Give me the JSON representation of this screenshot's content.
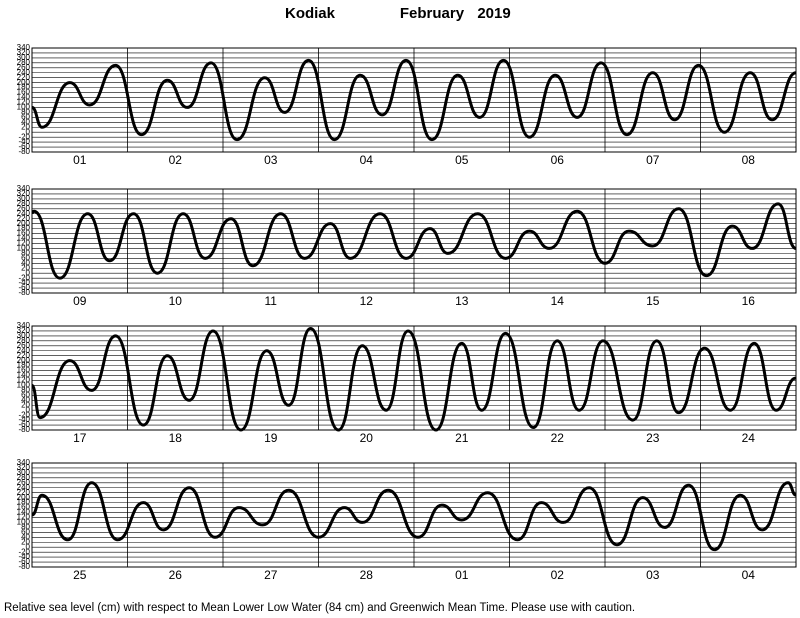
{
  "title": {
    "place": "Kodiak",
    "month": "February",
    "year": "2019"
  },
  "footnote": "Relative sea level (cm) with respect to Mean Lower Low Water (84 cm) and Greenwich Mean Time. Please use with caution.",
  "chart_data": [
    {
      "type": "line",
      "color": "#000000",
      "categories": [
        "01",
        "02",
        "03",
        "04",
        "05",
        "06",
        "07",
        "08"
      ],
      "x": [
        0,
        2.5,
        9.5,
        14.5,
        21,
        27.5,
        34,
        39,
        45,
        51.5,
        58.5,
        63.5,
        69.5,
        76,
        82.5,
        88,
        94,
        100.5,
        107,
        112.5,
        118.5,
        125,
        131.5,
        137,
        143,
        149.5,
        156,
        161.5,
        167.5,
        174,
        180.5,
        186,
        192
      ],
      "values": [
        100,
        20,
        200,
        110,
        270,
        -10,
        210,
        100,
        280,
        -30,
        220,
        80,
        290,
        -30,
        230,
        70,
        290,
        -30,
        230,
        60,
        290,
        -20,
        230,
        60,
        280,
        -10,
        240,
        50,
        270,
        0,
        240,
        50,
        240
      ],
      "xlim": [
        0,
        192
      ],
      "ylim": [
        -80,
        340
      ],
      "yticks": [
        340,
        320,
        300,
        280,
        260,
        240,
        220,
        200,
        180,
        160,
        140,
        120,
        100,
        80,
        60,
        40,
        20,
        0,
        -20,
        -40,
        -60,
        -80
      ]
    },
    {
      "type": "line",
      "color": "#000000",
      "categories": [
        "09",
        "10",
        "11",
        "12",
        "13",
        "14",
        "15",
        "16"
      ],
      "x": [
        0,
        0.5,
        7,
        14,
        19.5,
        25.5,
        31.5,
        38,
        43.5,
        50,
        55.5,
        62.5,
        68.5,
        75,
        80,
        87.5,
        94,
        100,
        104.5,
        112,
        119,
        125,
        130,
        137,
        144,
        150,
        156,
        162.5,
        169.5,
        176,
        181,
        187.5,
        192
      ],
      "values": [
        245,
        250,
        -20,
        240,
        50,
        240,
        0,
        240,
        60,
        220,
        30,
        240,
        60,
        200,
        60,
        240,
        60,
        180,
        80,
        240,
        60,
        170,
        100,
        250,
        40,
        170,
        110,
        260,
        -10,
        190,
        100,
        280,
        100
      ],
      "xlim": [
        0,
        192
      ],
      "ylim": [
        -80,
        340
      ],
      "yticks": [
        340,
        320,
        300,
        280,
        260,
        240,
        220,
        200,
        180,
        160,
        140,
        120,
        100,
        80,
        60,
        40,
        20,
        0,
        -20,
        -40,
        -60,
        -80
      ]
    },
    {
      "type": "line",
      "color": "#000000",
      "categories": [
        "17",
        "18",
        "19",
        "20",
        "21",
        "22",
        "23",
        "24"
      ],
      "x": [
        0,
        2,
        9.5,
        15,
        21,
        28,
        34,
        39.5,
        45.5,
        52.5,
        59,
        64.5,
        70,
        77,
        83,
        89,
        94.5,
        101.5,
        108,
        113,
        119,
        126,
        132,
        137.5,
        143.5,
        151,
        157,
        162.5,
        169,
        175.5,
        181.5,
        187,
        192
      ],
      "values": [
        100,
        -30,
        200,
        80,
        300,
        -60,
        220,
        40,
        320,
        -80,
        240,
        20,
        330,
        -80,
        260,
        0,
        320,
        -80,
        270,
        0,
        310,
        -70,
        280,
        0,
        280,
        -40,
        280,
        -10,
        250,
        0,
        270,
        0,
        130
      ],
      "xlim": [
        0,
        192
      ],
      "ylim": [
        -80,
        340
      ],
      "yticks": [
        340,
        320,
        300,
        280,
        260,
        240,
        220,
        200,
        180,
        160,
        140,
        120,
        100,
        80,
        60,
        40,
        20,
        0,
        -20,
        -40,
        -60,
        -80
      ]
    },
    {
      "type": "line",
      "color": "#000000",
      "categories": [
        "25",
        "26",
        "27",
        "28",
        "01",
        "02",
        "03",
        "04"
      ],
      "x": [
        0,
        2.5,
        9,
        15,
        21.5,
        28,
        33,
        39.5,
        46,
        52,
        58,
        64.5,
        72,
        78.5,
        83,
        89.5,
        97,
        103,
        108,
        114.5,
        122,
        128,
        133.5,
        140,
        147,
        153.5,
        159,
        165,
        171.5,
        178,
        183.5,
        190,
        192
      ],
      "values": [
        130,
        210,
        30,
        260,
        30,
        180,
        70,
        240,
        40,
        160,
        90,
        230,
        40,
        160,
        100,
        230,
        40,
        170,
        110,
        220,
        30,
        180,
        100,
        240,
        10,
        200,
        80,
        250,
        -10,
        210,
        70,
        260,
        210
      ],
      "xlim": [
        0,
        192
      ],
      "ylim": [
        -80,
        340
      ],
      "yticks": [
        340,
        320,
        300,
        280,
        260,
        240,
        220,
        200,
        180,
        160,
        140,
        120,
        100,
        80,
        60,
        40,
        20,
        0,
        -20,
        -40,
        -60,
        -80
      ]
    }
  ]
}
